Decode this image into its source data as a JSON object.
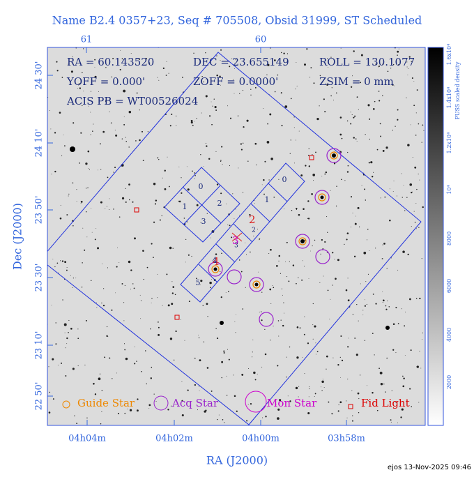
{
  "title": "Name B2.4 0357+23, Seq # 705508, Obsid 31999, ST Scheduled",
  "x_label": "RA (J2000)",
  "y_label": "Dec (J2000)",
  "top_ticks": [
    "61",
    "60"
  ],
  "left_ticks": [
    "24 30'",
    "24 10'",
    "23 50'",
    "23 30'",
    "23 10'",
    "22 50'"
  ],
  "bottom_ticks": [
    "04h04m",
    "04h02m",
    "04h00m",
    "03h58m"
  ],
  "colorbar": {
    "label": "PUSS scaled density",
    "ticks": [
      "2000",
      "4000",
      "6000",
      "8000",
      "10⁴",
      "1.2x10⁴",
      "1.4x10⁴",
      "1.6x10⁴"
    ]
  },
  "info": [
    [
      "RA = 60.143520",
      "DEC = 23.655149",
      "ROLL = 130.1077"
    ],
    [
      "YOFF =   0.000'",
      "ZOFF =  0.0000'",
      "ZSIM = 0 mm"
    ],
    [
      "ACIS PB = WT00526024"
    ]
  ],
  "chips_i": [
    "0",
    "1",
    "2",
    "3"
  ],
  "chips_s": [
    "0",
    "1",
    "2",
    "3",
    "4",
    "5"
  ],
  "legend": [
    "Guide Star",
    "Acq Star",
    "Mon Star",
    "Fid Light"
  ],
  "footer": "ejos 13-Nov-2025 09:46"
}
